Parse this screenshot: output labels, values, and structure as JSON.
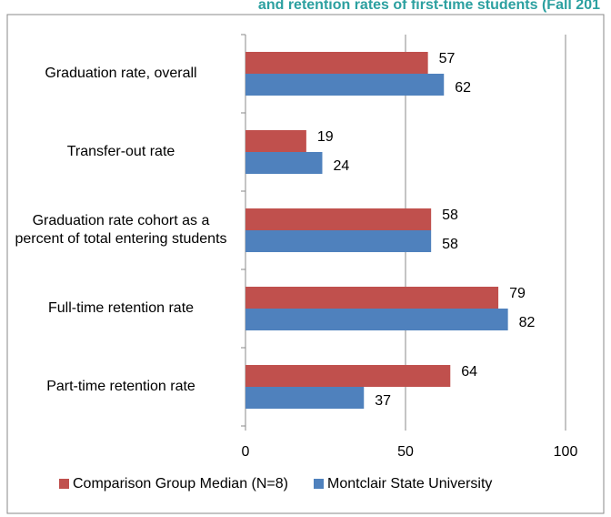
{
  "chart_data": {
    "type": "bar",
    "orientation": "horizontal",
    "title": "and retention rates of first-time students (Fall 201",
    "categories": [
      "Graduation rate, overall",
      "Transfer-out rate",
      "Graduation rate cohort as a percent of total entering students",
      "Full-time retention rate",
      "Part-time retention rate"
    ],
    "series": [
      {
        "name": "Comparison Group Median (N=8)",
        "color": "#c0504d",
        "values": [
          57,
          19,
          58,
          79,
          64
        ]
      },
      {
        "name": "Montclair State University",
        "color": "#4f81bd",
        "values": [
          62,
          24,
          58,
          82,
          37
        ]
      }
    ],
    "xlim": [
      0,
      100
    ],
    "xticks": [
      0,
      50,
      100
    ],
    "grid": true,
    "legend": "bottom"
  }
}
